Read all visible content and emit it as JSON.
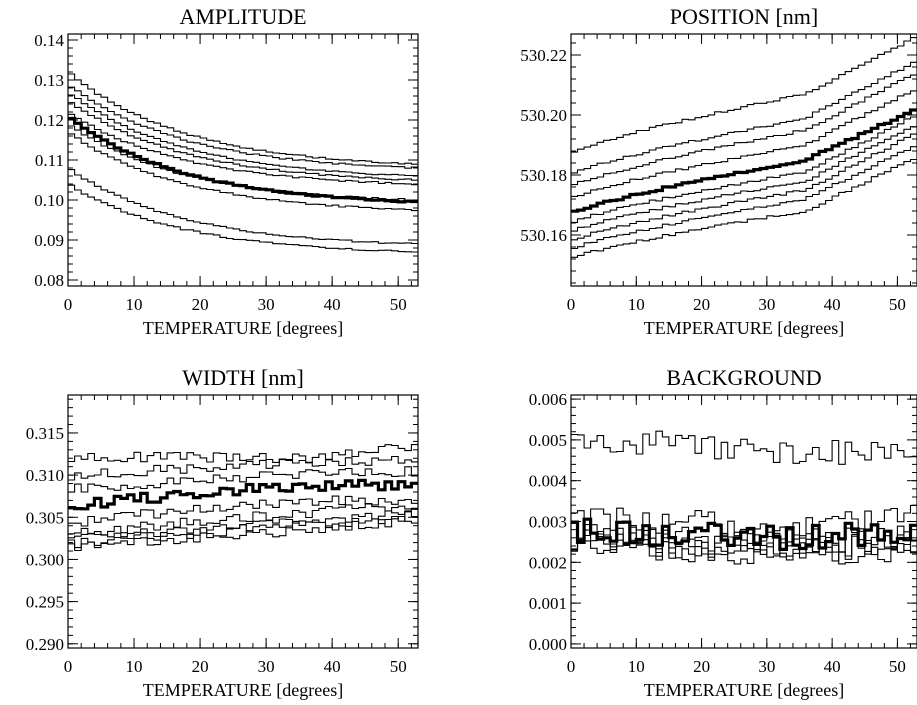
{
  "chart_data": [
    {
      "type": "line",
      "title": "AMPLITUDE",
      "xlabel": "TEMPERATURE [degrees]",
      "ylabel": "",
      "xlim": [
        0,
        53
      ],
      "ylim": [
        0.0785,
        0.1415
      ],
      "x_ticks": [
        0,
        10,
        20,
        30,
        40,
        50
      ],
      "x_tick_labels": [
        "0",
        "10",
        "20",
        "30",
        "40",
        "50"
      ],
      "y_ticks": [
        0.08,
        0.09,
        0.1,
        0.11,
        0.12,
        0.13,
        0.14
      ],
      "y_tick_labels": [
        "0.08",
        "0.09",
        "0.10",
        "0.11",
        "0.12",
        "0.13",
        "0.14"
      ],
      "style": "step",
      "grid": false,
      "noise": 0.0002,
      "series": [
        {
          "start": 0.132,
          "end": 0.109,
          "thick": false
        },
        {
          "start": 0.129,
          "end": 0.108,
          "thick": false
        },
        {
          "start": 0.127,
          "end": 0.106,
          "thick": false
        },
        {
          "start": 0.125,
          "end": 0.105,
          "thick": false
        },
        {
          "start": 0.122,
          "end": 0.104,
          "thick": false
        },
        {
          "start": 0.121,
          "end": 0.0995,
          "thick": true
        },
        {
          "start": 0.119,
          "end": 0.1,
          "thick": false
        },
        {
          "start": 0.117,
          "end": 0.0975,
          "thick": false
        },
        {
          "start": 0.108,
          "end": 0.089,
          "thick": false
        },
        {
          "start": 0.104,
          "end": 0.087,
          "thick": false
        }
      ]
    },
    {
      "type": "line",
      "title": "POSITION [nm]",
      "xlabel": "TEMPERATURE [degrees]",
      "ylabel": "",
      "xlim": [
        0,
        53
      ],
      "ylim": [
        530.143,
        530.227
      ],
      "x_ticks": [
        0,
        10,
        20,
        30,
        40,
        50
      ],
      "x_tick_labels": [
        "0",
        "10",
        "20",
        "30",
        "40",
        "50"
      ],
      "y_ticks": [
        530.16,
        530.18,
        530.2,
        530.22
      ],
      "y_tick_labels": [
        "530.16",
        "530.18",
        "530.20",
        "530.22"
      ],
      "style": "step",
      "grid": false,
      "noise": 0.0004,
      "series": [
        {
          "start": 530.187,
          "mid": 530.207,
          "end": 530.226,
          "thick": false
        },
        {
          "start": 530.18,
          "mid": 530.199,
          "end": 530.218,
          "thick": false
        },
        {
          "start": 530.176,
          "mid": 530.195,
          "end": 530.214,
          "thick": false
        },
        {
          "start": 530.172,
          "mid": 530.19,
          "end": 530.209,
          "thick": false
        },
        {
          "start": 530.167,
          "mid": 530.185,
          "end": 530.202,
          "thick": true
        },
        {
          "start": 530.164,
          "mid": 530.181,
          "end": 530.2,
          "thick": false
        },
        {
          "start": 530.161,
          "mid": 530.178,
          "end": 530.197,
          "thick": false
        },
        {
          "start": 530.158,
          "mid": 530.175,
          "end": 530.194,
          "thick": false
        },
        {
          "start": 530.155,
          "mid": 530.172,
          "end": 530.19,
          "thick": false
        },
        {
          "start": 530.152,
          "mid": 530.168,
          "end": 530.186,
          "thick": false
        }
      ]
    },
    {
      "type": "line",
      "title": "WIDTH [nm]",
      "xlabel": "TEMPERATURE [degrees]",
      "ylabel": "",
      "xlim": [
        0,
        53
      ],
      "ylim": [
        0.2895,
        0.3195
      ],
      "x_ticks": [
        0,
        10,
        20,
        30,
        40,
        50
      ],
      "x_tick_labels": [
        "0",
        "10",
        "20",
        "30",
        "40",
        "50"
      ],
      "y_ticks": [
        0.29,
        0.295,
        0.3,
        0.305,
        0.31,
        0.315
      ],
      "y_tick_labels": [
        "0.290",
        "0.295",
        "0.300",
        "0.305",
        "0.310",
        "0.315"
      ],
      "style": "step",
      "grid": false,
      "noise": 0.0006,
      "series": [
        {
          "start": 0.3122,
          "mid": 0.312,
          "end": 0.3135,
          "thick": false
        },
        {
          "start": 0.3098,
          "mid": 0.3115,
          "end": 0.3118,
          "thick": false
        },
        {
          "start": 0.3082,
          "mid": 0.3102,
          "end": 0.3105,
          "thick": false
        },
        {
          "start": 0.3062,
          "mid": 0.3088,
          "end": 0.3088,
          "thick": true
        },
        {
          "start": 0.3042,
          "mid": 0.307,
          "end": 0.3068,
          "thick": false
        },
        {
          "start": 0.3028,
          "mid": 0.3055,
          "end": 0.3065,
          "thick": false
        },
        {
          "start": 0.3022,
          "mid": 0.3045,
          "end": 0.3058,
          "thick": false
        },
        {
          "start": 0.3018,
          "mid": 0.304,
          "end": 0.3052,
          "thick": false
        },
        {
          "start": 0.3012,
          "mid": 0.3035,
          "end": 0.3048,
          "thick": false
        }
      ]
    },
    {
      "type": "line",
      "title": "BACKGROUND",
      "xlabel": "TEMPERATURE [degrees]",
      "ylabel": "",
      "xlim": [
        0,
        53
      ],
      "ylim": [
        -0.0001,
        0.0061
      ],
      "x_ticks": [
        0,
        10,
        20,
        30,
        40,
        50
      ],
      "x_tick_labels": [
        "0",
        "10",
        "20",
        "30",
        "40",
        "50"
      ],
      "y_ticks": [
        0.0,
        0.001,
        0.002,
        0.003,
        0.004,
        0.005,
        0.006
      ],
      "y_tick_labels": [
        "0.000",
        "0.001",
        "0.002",
        "0.003",
        "0.004",
        "0.005",
        "0.006"
      ],
      "style": "step",
      "grid": false,
      "noise": 0.0003,
      "series": [
        {
          "start": 0.0051,
          "mid": 0.0047,
          "end": 0.0047,
          "thick": false
        },
        {
          "start": 0.0031,
          "mid": 0.0029,
          "end": 0.0031,
          "thick": false
        },
        {
          "start": 0.0028,
          "mid": 0.0026,
          "end": 0.0028,
          "thick": true
        },
        {
          "start": 0.0027,
          "mid": 0.0025,
          "end": 0.0026,
          "thick": false
        },
        {
          "start": 0.0026,
          "mid": 0.0024,
          "end": 0.0025,
          "thick": false
        },
        {
          "start": 0.0025,
          "mid": 0.0023,
          "end": 0.0024,
          "thick": false
        },
        {
          "start": 0.0024,
          "mid": 0.0022,
          "end": 0.0023,
          "thick": false
        }
      ]
    }
  ]
}
